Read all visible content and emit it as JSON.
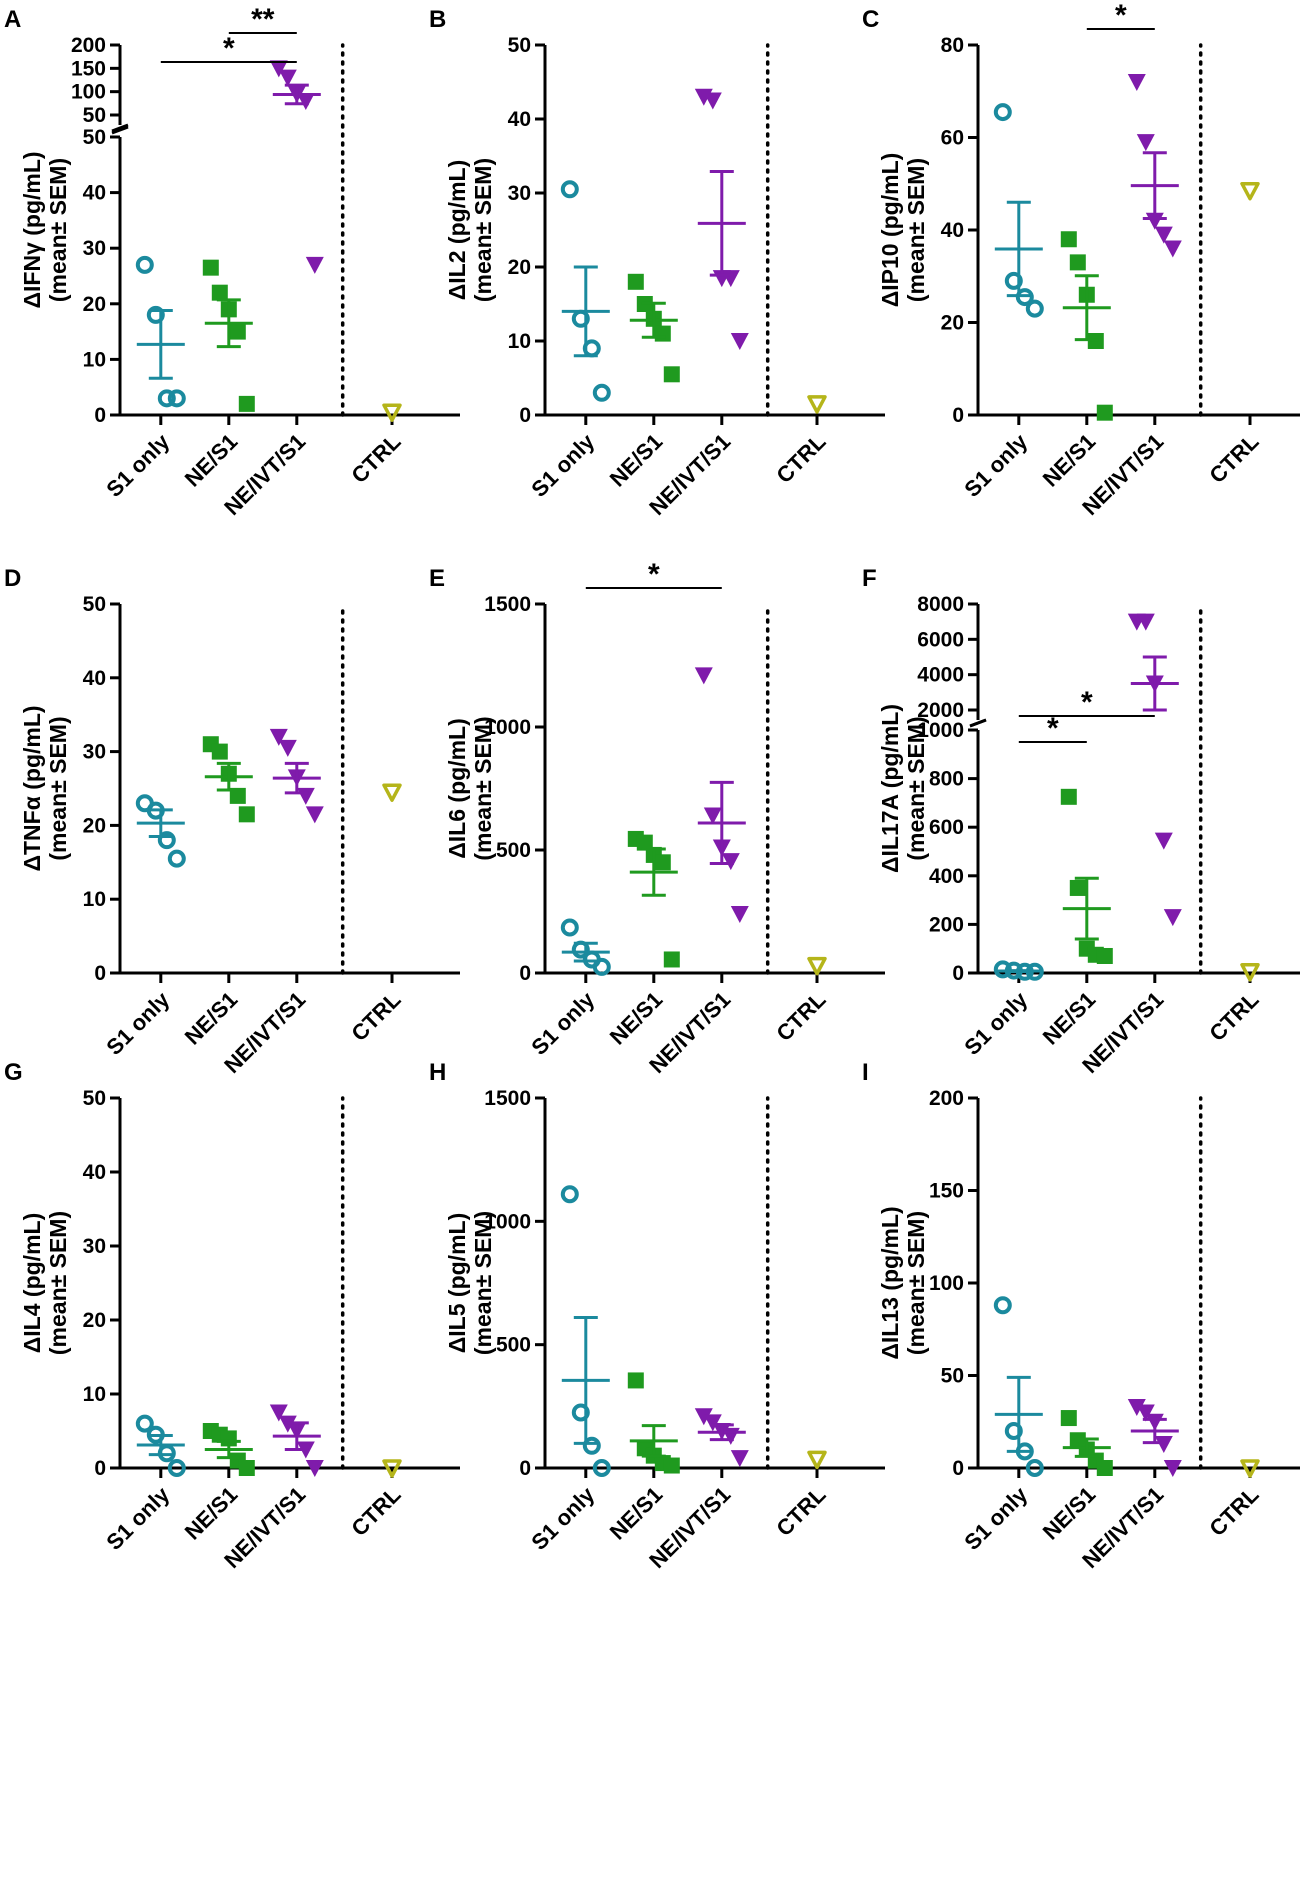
{
  "figure": {
    "groups": [
      {
        "key": "s1",
        "label": "S1 only",
        "color": "#1b8a9e",
        "marker": "open-circle"
      },
      {
        "key": "ne",
        "label": "NE/S1",
        "color": "#1f9a1f",
        "marker": "filled-square"
      },
      {
        "key": "nei",
        "label": "NE/IVT/S1",
        "color": "#7f1bab",
        "marker": "filled-triangle-down"
      },
      {
        "key": "ctrl",
        "label": "CTRL",
        "color": "#b5b51a",
        "marker": "open-triangle-down"
      }
    ],
    "ylabel_line2": "(mean± SEM)"
  },
  "chart_data": [
    {
      "id": "A",
      "type": "scatter",
      "ylabel": "ΔIFNγ (pg/mL)",
      "ylim": [
        0,
        50
      ],
      "yticks": [
        0,
        10,
        20,
        30,
        40,
        50
      ],
      "broken_axis": {
        "upper_ticks": [
          50,
          100,
          150,
          200
        ]
      },
      "groups": {
        "s1": {
          "points": [
            27,
            18,
            3,
            3
          ],
          "mean": 12.7,
          "sem": 6.1
        },
        "ne": {
          "points": [
            26.5,
            22,
            19,
            15,
            2
          ],
          "mean": 16.5,
          "sem": 4.2
        },
        "nei": {
          "points": [
            150,
            130,
            95,
            80,
            27
          ],
          "mean": 94,
          "sem": 20
        },
        "ctrl": {
          "points": [
            0.5
          ]
        }
      },
      "significance": [
        {
          "from": "s1",
          "to": "nei",
          "label": "*"
        },
        {
          "from": "ne",
          "to": "nei",
          "label": "**"
        }
      ]
    },
    {
      "id": "B",
      "type": "scatter",
      "ylabel": "ΔIL2 (pg/mL)",
      "ylim": [
        0,
        50
      ],
      "yticks": [
        0,
        10,
        20,
        30,
        40,
        50
      ],
      "groups": {
        "s1": {
          "points": [
            30.5,
            13,
            9,
            3
          ],
          "mean": 14,
          "sem": 6
        },
        "ne": {
          "points": [
            18,
            15,
            13,
            11,
            5.5
          ],
          "mean": 12.8,
          "sem": 2.3
        },
        "nei": {
          "points": [
            43,
            42.5,
            18.5,
            18.5,
            10
          ],
          "mean": 25.9,
          "sem": 7
        },
        "ctrl": {
          "points": [
            1.5
          ]
        }
      },
      "significance": []
    },
    {
      "id": "C",
      "type": "scatter",
      "ylabel": "ΔIP10 (pg/mL)",
      "ylim": [
        0,
        80
      ],
      "yticks": [
        0,
        20,
        40,
        60,
        80
      ],
      "groups": {
        "s1": {
          "points": [
            65.5,
            29,
            25.5,
            23
          ],
          "mean": 35.9,
          "sem": 10.1
        },
        "ne": {
          "points": [
            38,
            33,
            26,
            16,
            0.5
          ],
          "mean": 23.2,
          "sem": 6.9
        },
        "nei": {
          "points": [
            72,
            59,
            42,
            39,
            36
          ],
          "mean": 49.6,
          "sem": 7.1
        },
        "ctrl": {
          "points": [
            48.5
          ]
        }
      },
      "significance": [
        {
          "from": "ne",
          "to": "nei",
          "label": "*"
        }
      ]
    },
    {
      "id": "D",
      "type": "scatter",
      "ylabel": "ΔTNFα (pg/mL)",
      "ylim": [
        0,
        50
      ],
      "yticks": [
        0,
        10,
        20,
        30,
        40,
        50
      ],
      "groups": {
        "s1": {
          "points": [
            23,
            22,
            18,
            15.5
          ],
          "mean": 20.3,
          "sem": 1.8
        },
        "ne": {
          "points": [
            31,
            30,
            27,
            24,
            21.5
          ],
          "mean": 26.6,
          "sem": 1.8
        },
        "nei": {
          "points": [
            32,
            30.5,
            26.5,
            24,
            21.5
          ],
          "mean": 26.4,
          "sem": 2.0
        },
        "ctrl": {
          "points": [
            24.5
          ]
        }
      },
      "significance": []
    },
    {
      "id": "E",
      "type": "scatter",
      "ylabel": "ΔIL6 (pg/mL)",
      "ylim": [
        0,
        1500
      ],
      "yticks": [
        0,
        500,
        1000,
        1500
      ],
      "groups": {
        "s1": {
          "points": [
            185,
            95,
            55,
            25
          ],
          "mean": 85,
          "sem": 36
        },
        "ne": {
          "points": [
            545,
            530,
            480,
            450,
            55
          ],
          "mean": 410,
          "sem": 94
        },
        "nei": {
          "points": [
            1210,
            640,
            510,
            455,
            240
          ],
          "mean": 610,
          "sem": 165
        },
        "ctrl": {
          "points": [
            30
          ]
        }
      },
      "significance": [
        {
          "from": "s1",
          "to": "nei",
          "label": "*"
        }
      ]
    },
    {
      "id": "F",
      "type": "scatter",
      "ylabel": "ΔIL17A (pg/mL)",
      "ylim": [
        0,
        1000
      ],
      "yticks": [
        0,
        200,
        400,
        600,
        800,
        1000
      ],
      "broken_axis": {
        "upper_ticks": [
          2000,
          4000,
          6000,
          8000
        ]
      },
      "groups": {
        "s1": {
          "points": [
            15,
            10,
            5,
            5
          ],
          "mean": 8,
          "sem": 2
        },
        "ne": {
          "points": [
            725,
            350,
            100,
            75,
            70
          ],
          "mean": 265,
          "sem": 125
        },
        "nei": {
          "points": [
            7000,
            7000,
            3500,
            545,
            230
          ],
          "mean": 3500,
          "sem": 1500
        },
        "ctrl": {
          "points": [
            5
          ]
        }
      },
      "significance": [
        {
          "from": "s1",
          "to": "ne",
          "label": "*"
        },
        {
          "from": "s1",
          "to": "nei",
          "label": "*"
        }
      ]
    },
    {
      "id": "G",
      "type": "scatter",
      "ylabel": "ΔIL4 (pg/mL)",
      "ylim": [
        0,
        50
      ],
      "yticks": [
        0,
        10,
        20,
        30,
        40,
        50
      ],
      "groups": {
        "s1": {
          "points": [
            6,
            4.5,
            2,
            0
          ],
          "mean": 3.1,
          "sem": 1.3
        },
        "ne": {
          "points": [
            5,
            4.5,
            4,
            1,
            0
          ],
          "mean": 2.5,
          "sem": 1.1
        },
        "nei": {
          "points": [
            7.5,
            6,
            5,
            2.5,
            0
          ],
          "mean": 4.3,
          "sem": 1.8
        },
        "ctrl": {
          "points": [
            0
          ]
        }
      },
      "significance": []
    },
    {
      "id": "H",
      "type": "scatter",
      "ylabel": "ΔIL5 (pg/mL)",
      "ylim": [
        0,
        1500
      ],
      "yticks": [
        0,
        500,
        1000,
        1500
      ],
      "groups": {
        "s1": {
          "points": [
            1110,
            225,
            90,
            0
          ],
          "mean": 355,
          "sem": 255
        },
        "ne": {
          "points": [
            355,
            80,
            50,
            20,
            10
          ],
          "mean": 110,
          "sem": 62
        },
        "nei": {
          "points": [
            210,
            185,
            150,
            130,
            40
          ],
          "mean": 145,
          "sem": 30
        },
        "ctrl": {
          "points": [
            35
          ]
        }
      },
      "significance": []
    },
    {
      "id": "I",
      "type": "scatter",
      "ylabel": "ΔIL13 (pg/mL)",
      "ylim": [
        0,
        200
      ],
      "yticks": [
        0,
        50,
        100,
        150,
        200
      ],
      "groups": {
        "s1": {
          "points": [
            88,
            20,
            9,
            0
          ],
          "mean": 29,
          "sem": 20
        },
        "ne": {
          "points": [
            27,
            15,
            10,
            4,
            0
          ],
          "mean": 11,
          "sem": 4.7
        },
        "nei": {
          "points": [
            33,
            30,
            25,
            13,
            0
          ],
          "mean": 20,
          "sem": 6.3
        },
        "ctrl": {
          "points": [
            0
          ]
        }
      },
      "significance": []
    }
  ]
}
